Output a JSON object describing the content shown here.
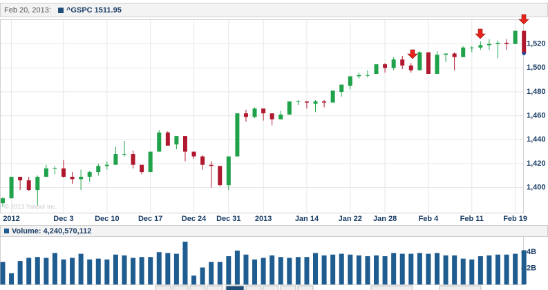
{
  "chart_data": [
    {
      "type": "candlestick",
      "header_date": "Feb 20, 2013:",
      "watermark": "© 2013 Yahoo! Inc.",
      "categories": [
        null,
        "2012",
        null,
        null,
        null,
        null,
        null,
        "Dec 3",
        null,
        null,
        null,
        null,
        "Dec 10",
        null,
        null,
        null,
        null,
        "Dec 17",
        null,
        null,
        null,
        null,
        "Dec 24",
        null,
        null,
        null,
        "Dec 31",
        null,
        null,
        null,
        "2013",
        null,
        null,
        null,
        null,
        "Jan 14",
        null,
        null,
        null,
        null,
        "Jan 22",
        null,
        null,
        null,
        "Jan 28",
        null,
        null,
        null,
        null,
        "Feb 4",
        null,
        null,
        null,
        null,
        "Feb 11",
        null,
        null,
        null,
        null,
        "Feb 19",
        null
      ],
      "series": [
        {
          "name": "^GSPC",
          "up_color": "#1fa24a",
          "down_color": "#b0182f",
          "legend_color": "#1f4e79",
          "open": [
            1387,
            1391,
            1409,
            1406,
            1398,
            1409,
            1416,
            1416,
            1409,
            1407,
            1409,
            1413,
            1418,
            1419,
            1428,
            1428,
            1419,
            1413,
            1430,
            1446,
            1436,
            1443,
            1430,
            1426,
            1419,
            1418,
            1402,
            1426,
            1462,
            1459,
            1466,
            1462,
            1457,
            1461,
            1472,
            1472,
            1470,
            1472,
            1471,
            1480,
            1485,
            1493,
            1494,
            1495,
            1503,
            1500,
            1507,
            1502,
            1498,
            1513,
            1495,
            1511,
            1512,
            1509,
            1517,
            1517,
            1519,
            1520,
            1521,
            1520,
            1531
          ],
          "high": [
            1392,
            1409,
            1409,
            1409,
            1410,
            1419,
            1418,
            1423,
            1413,
            1415,
            1414,
            1420,
            1422,
            1434,
            1439,
            1431,
            1419,
            1430,
            1448,
            1447,
            1443,
            1443,
            1430,
            1427,
            1422,
            1418,
            1426,
            1462,
            1465,
            1467,
            1466,
            1462,
            1464,
            1472,
            1473,
            1472,
            1473,
            1473,
            1481,
            1486,
            1493,
            1496,
            1498,
            1503,
            1504,
            1509,
            1510,
            1504,
            1514,
            1513,
            1514,
            1512,
            1513,
            1518,
            1518,
            1522,
            1524,
            1523,
            1524,
            1531,
            1531
          ],
          "low": [
            1384,
            1391,
            1398,
            1397,
            1385,
            1409,
            1411,
            1408,
            1403,
            1398,
            1405,
            1410,
            1415,
            1419,
            1426,
            1416,
            1411,
            1413,
            1430,
            1435,
            1432,
            1422,
            1424,
            1415,
            1400,
            1401,
            1398,
            1426,
            1455,
            1458,
            1456,
            1452,
            1457,
            1461,
            1469,
            1466,
            1463,
            1467,
            1471,
            1476,
            1482,
            1491,
            1492,
            1495,
            1496,
            1498,
            1499,
            1496,
            1498,
            1495,
            1495,
            1505,
            1498,
            1509,
            1513,
            1515,
            1515,
            1508,
            1515,
            1520,
            1511
          ],
          "close": [
            1391,
            1409,
            1406,
            1398,
            1409,
            1416,
            1416,
            1409,
            1407,
            1409,
            1413,
            1418,
            1419,
            1428,
            1428,
            1419,
            1413,
            1430,
            1446,
            1435,
            1443,
            1430,
            1426,
            1419,
            1418,
            1402,
            1426,
            1462,
            1459,
            1466,
            1462,
            1457,
            1461,
            1472,
            1472,
            1471,
            1472,
            1471,
            1481,
            1486,
            1493,
            1494,
            1494,
            1503,
            1500,
            1507,
            1502,
            1498,
            1513,
            1495,
            1511,
            1512,
            1509,
            1517,
            1517,
            1519,
            1520,
            1521,
            1520,
            1531,
            1511.95
          ]
        }
      ],
      "ylim": [
        1379,
        1540
      ],
      "yticks": [
        {
          "value": 1400,
          "label": "1,400"
        },
        {
          "value": 1420,
          "label": "1,420"
        },
        {
          "value": 1440,
          "label": "1,440"
        },
        {
          "value": 1460,
          "label": "1,460"
        },
        {
          "value": 1480,
          "label": "1,480"
        },
        {
          "value": 1500,
          "label": "1,500"
        },
        {
          "value": 1520,
          "label": "1,520"
        }
      ],
      "grid": true
    },
    {
      "type": "bar",
      "title": "Volume: 4,240,570,112",
      "color": "#1f5c8f",
      "values": [
        2800000000,
        1400000000,
        2900000000,
        3300000000,
        3400000000,
        3300000000,
        3900000000,
        3100000000,
        3300000000,
        3800000000,
        3100000000,
        3200000000,
        3100000000,
        3700000000,
        3600000000,
        3300000000,
        3400000000,
        3400000000,
        4000000000,
        3900000000,
        3800000000,
        5300000000,
        1100000000,
        2100000000,
        2800000000,
        2800000000,
        3500000000,
        4200000000,
        3700000000,
        3100000000,
        3300000000,
        3600000000,
        3400000000,
        3300000000,
        3400000000,
        3400000000,
        3900000000,
        3600000000,
        3700000000,
        3800000000,
        3700000000,
        3600000000,
        3500000000,
        3600000000,
        3500000000,
        3900000000,
        3800000000,
        3800000000,
        3900000000,
        3800000000,
        3900000000,
        3600000000,
        3600000000,
        3200000000,
        3100000000,
        3500000000,
        3600000000,
        3700000000,
        3700000000,
        3800000000,
        4240570112
      ],
      "ylim": [
        0,
        5900000000
      ],
      "yticks": [
        {
          "value": 2000000000,
          "label": "2B"
        },
        {
          "value": 4000000000,
          "label": "4B"
        }
      ]
    }
  ]
}
